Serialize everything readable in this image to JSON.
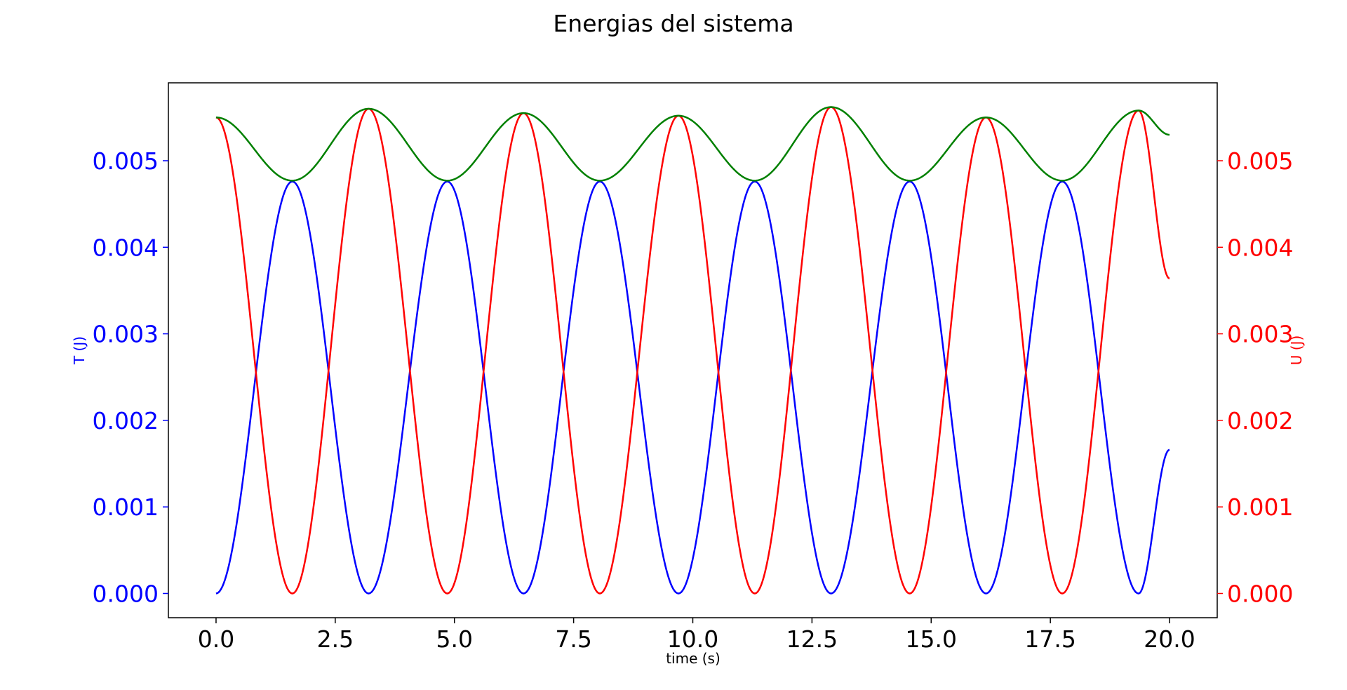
{
  "chart_data": {
    "type": "line",
    "title": "Energias del sistema",
    "xlabel": "time (s)",
    "ylabel_left": "T (J)",
    "ylabel_right": "U (J)",
    "xlim": [
      -1.0,
      21.0
    ],
    "ylim": [
      -0.00028,
      0.0059
    ],
    "x_ticks": [
      "0.0",
      "2.5",
      "5.0",
      "7.5",
      "10.0",
      "12.5",
      "15.0",
      "17.5",
      "20.0"
    ],
    "y_ticks_left": [
      "0.000",
      "0.001",
      "0.002",
      "0.003",
      "0.004",
      "0.005"
    ],
    "y_ticks_right": [
      "0.000",
      "0.001",
      "0.002",
      "0.003",
      "0.004",
      "0.005"
    ],
    "left_axis_color": "#0000ff",
    "right_axis_color": "#ff0000",
    "grid": false,
    "x_range": [
      0,
      20
    ],
    "series": [
      {
        "color": "#0000ff",
        "axis": "left",
        "points": [
          [
            0.0,
            0.0
          ],
          [
            1.6,
            0.00476
          ],
          [
            3.2,
            0.0
          ],
          [
            4.85,
            0.00476
          ],
          [
            6.45,
            0.0
          ],
          [
            8.05,
            0.00476
          ],
          [
            9.7,
            0.0
          ],
          [
            11.3,
            0.00476
          ],
          [
            12.9,
            0.0
          ],
          [
            14.55,
            0.00476
          ],
          [
            16.15,
            0.0
          ],
          [
            17.75,
            0.00476
          ],
          [
            19.35,
            0.0
          ],
          [
            20.0,
            0.00166
          ]
        ]
      },
      {
        "color": "#ff0000",
        "axis": "right",
        "points": [
          [
            0.0,
            0.0055
          ],
          [
            1.6,
            0.0
          ],
          [
            3.2,
            0.0056
          ],
          [
            4.85,
            0.0
          ],
          [
            6.45,
            0.00555
          ],
          [
            8.05,
            0.0
          ],
          [
            9.7,
            0.00552
          ],
          [
            11.3,
            0.0
          ],
          [
            12.9,
            0.00562
          ],
          [
            14.55,
            0.0
          ],
          [
            16.15,
            0.0055
          ],
          [
            17.75,
            0.0
          ],
          [
            19.35,
            0.00558
          ],
          [
            20.0,
            0.00364
          ]
        ]
      },
      {
        "color": "#008000",
        "axis": "left",
        "points": [
          [
            0.0,
            0.0055
          ],
          [
            1.6,
            0.00477
          ],
          [
            3.2,
            0.0056
          ],
          [
            4.85,
            0.00477
          ],
          [
            6.45,
            0.00555
          ],
          [
            8.05,
            0.00477
          ],
          [
            9.7,
            0.00552
          ],
          [
            11.3,
            0.00477
          ],
          [
            12.9,
            0.00562
          ],
          [
            14.55,
            0.00477
          ],
          [
            16.15,
            0.0055
          ],
          [
            17.75,
            0.00477
          ],
          [
            19.35,
            0.00558
          ],
          [
            20.0,
            0.0053
          ]
        ]
      }
    ]
  }
}
